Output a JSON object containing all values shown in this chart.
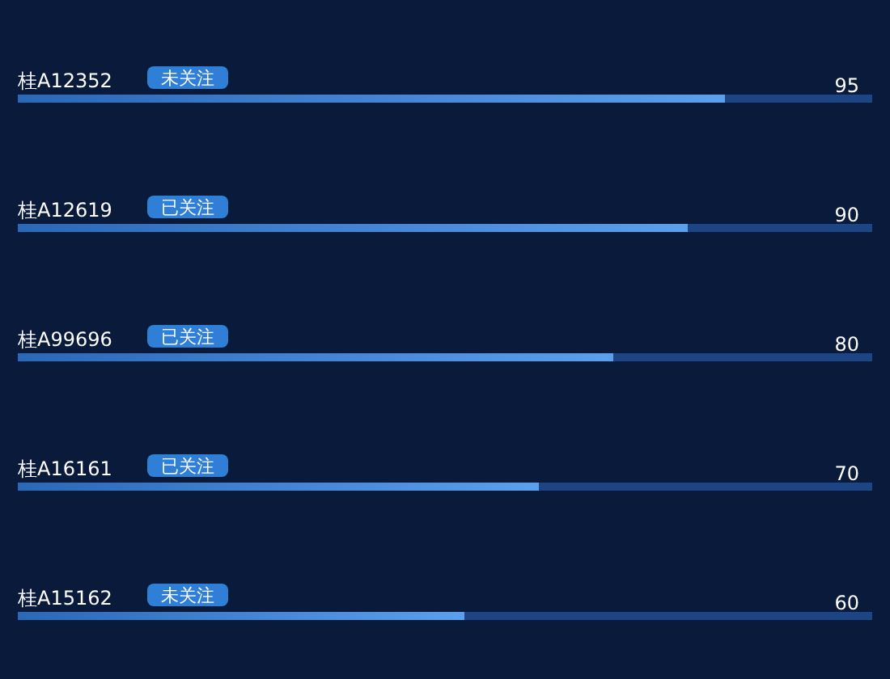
{
  "chart_data": {
    "type": "bar",
    "orientation": "horizontal",
    "categories": [
      "桂A12352",
      "桂A12619",
      "桂A99696",
      "桂A16161",
      "桂A15162"
    ],
    "values": [
      95,
      90,
      80,
      70,
      60
    ],
    "color": "#5aa0ef",
    "data_labels": true,
    "tick_labels": "y",
    "annotations": [
      "未关注",
      "已关注",
      "已关注",
      "已关注",
      "未关注"
    ]
  }
}
